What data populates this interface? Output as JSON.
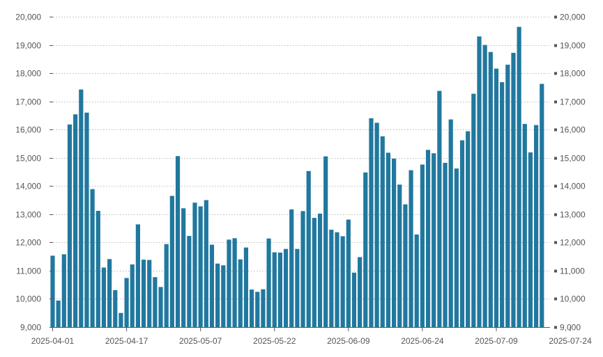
{
  "chart_data": {
    "type": "bar",
    "title": "",
    "xlabel": "",
    "ylabel": "",
    "ylim": [
      9000,
      20000
    ],
    "y_ticks": [
      "9,000",
      "10,000",
      "11,000",
      "12,000",
      "13,000",
      "14,000",
      "15,000",
      "16,000",
      "17,000",
      "18,000",
      "19,000",
      "20,000"
    ],
    "y_tick_values": [
      9000,
      10000,
      11000,
      12000,
      13000,
      14000,
      15000,
      16000,
      17000,
      18000,
      19000,
      20000
    ],
    "right_axis_mirrored": true,
    "grid": "horizontal dotted",
    "bar_color": "#21789F",
    "x_tick_labels": [
      "2025-04-01",
      "2025-04-17",
      "2025-05-07",
      "2025-05-22",
      "2025-06-09",
      "2025-06-24",
      "2025-07-09",
      "2025-07-24"
    ],
    "x_tick_indices": [
      0,
      13,
      26,
      39,
      52,
      65,
      78,
      91
    ],
    "values": [
      11530,
      9940,
      11580,
      16180,
      16540,
      17420,
      16600,
      13890,
      13120,
      11110,
      11410,
      10310,
      9500,
      10740,
      11220,
      12640,
      11390,
      11380,
      10770,
      10420,
      11940,
      13650,
      15060,
      13210,
      12230,
      13410,
      13280,
      13500,
      11920,
      11250,
      11190,
      12100,
      12150,
      11400,
      11820,
      10330,
      10250,
      10340,
      12140,
      11650,
      11640,
      11770,
      13170,
      11770,
      13110,
      14530,
      12870,
      13020,
      15050,
      12450,
      12360,
      12220,
      12810,
      10930,
      11480,
      14480,
      16400,
      16240,
      15760,
      15180,
      14970,
      14050,
      13350,
      14560,
      12280,
      14760,
      15280,
      15160,
      17370,
      14820,
      16360,
      14620,
      15620,
      15940,
      17270,
      19300,
      19000,
      18750,
      18160,
      17680,
      18300,
      18720,
      19640,
      16200,
      15190,
      16160,
      17620
    ]
  }
}
